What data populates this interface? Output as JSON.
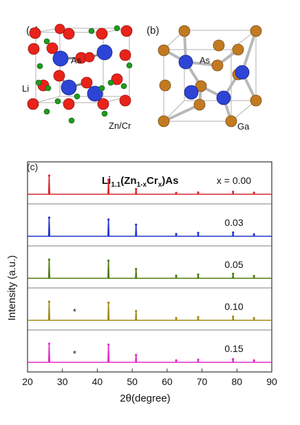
{
  "panel_a": {
    "label": "(a)",
    "atoms": {
      "as": "As",
      "li": "Li",
      "zncr": "Zn/Cr"
    },
    "colors": {
      "red": "#e8231a",
      "blue": "#2d44d6",
      "green": "#1f9a1f"
    }
  },
  "panel_b": {
    "label": "(b)",
    "atoms": {
      "as": "As",
      "ga": "Ga"
    },
    "colors": {
      "orange": "#c27a22",
      "blue": "#2d44d6"
    }
  },
  "chart_data": {
    "type": "line",
    "panel_label": "(c)",
    "title": "Li1.1(Zn1-xCrx)As",
    "title_parts": {
      "a": "Li",
      "b": "1.1",
      "c": "(Zn",
      "d": "1-x",
      "e": "Cr",
      "f": "x",
      "g": ")As"
    },
    "xlabel": "2θ(degree)",
    "ylabel": "Intensity (a.u.)",
    "xlim": [
      20,
      90
    ],
    "x_ticks": [
      "20",
      "30",
      "40",
      "50",
      "60",
      "70",
      "80",
      "90"
    ],
    "grid": false,
    "series": [
      {
        "name": "x = 0.00",
        "color": "#d8262e",
        "peaks": [
          [
            26.2,
            1.0
          ],
          [
            43.2,
            0.78
          ],
          [
            51.1,
            0.28
          ],
          [
            62.6,
            0.07
          ],
          [
            68.9,
            0.09
          ],
          [
            78.9,
            0.13
          ],
          [
            84.9,
            0.08
          ]
        ]
      },
      {
        "name": "0.03",
        "color": "#2233cc",
        "peaks": [
          [
            26.2,
            1.0
          ],
          [
            43.2,
            0.9
          ],
          [
            51.1,
            0.62
          ],
          [
            62.6,
            0.12
          ],
          [
            68.9,
            0.18
          ],
          [
            78.9,
            0.2
          ],
          [
            84.9,
            0.1
          ]
        ]
      },
      {
        "name": "0.05",
        "color": "#4e7a12",
        "peaks": [
          [
            26.2,
            1.0
          ],
          [
            43.2,
            0.95
          ],
          [
            51.1,
            0.5
          ],
          [
            62.6,
            0.14
          ],
          [
            68.9,
            0.2
          ],
          [
            78.9,
            0.24
          ],
          [
            84.9,
            0.12
          ]
        ]
      },
      {
        "name": "0.10",
        "color": "#a08a16",
        "peaks": [
          [
            26.2,
            1.0
          ],
          [
            43.2,
            0.95
          ],
          [
            51.1,
            0.5
          ],
          [
            62.6,
            0.12
          ],
          [
            68.9,
            0.17
          ],
          [
            78.9,
            0.2
          ],
          [
            84.9,
            0.11
          ]
        ]
      },
      {
        "name": "0.15",
        "color": "#e22bc8",
        "peaks": [
          [
            26.2,
            1.0
          ],
          [
            43.2,
            0.95
          ],
          [
            51.1,
            0.4
          ],
          [
            62.6,
            0.1
          ],
          [
            68.9,
            0.14
          ],
          [
            78.9,
            0.17
          ],
          [
            84.9,
            0.1
          ]
        ]
      }
    ],
    "annotations": [
      {
        "text": "*",
        "series": "0.10",
        "x": 33.5
      },
      {
        "text": "*",
        "series": "0.15",
        "x": 33.5
      }
    ]
  }
}
